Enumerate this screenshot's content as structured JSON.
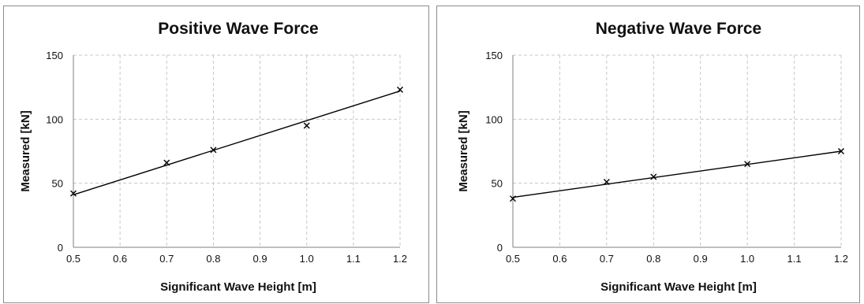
{
  "chart_data": [
    {
      "type": "scatter",
      "title": "Positive Wave Force",
      "xlabel": "Significant Wave Height [m]",
      "ylabel": "Measured [kN]",
      "xlim": [
        0.5,
        1.2
      ],
      "ylim": [
        0,
        150
      ],
      "xticks": [
        "0.5",
        "0.6",
        "0.7",
        "0.8",
        "0.9",
        "1.0",
        "1.1",
        "1.2"
      ],
      "yticks": [
        "0",
        "50",
        "100",
        "150"
      ],
      "grid": true,
      "marker": "x",
      "x": [
        0.5,
        0.7,
        0.8,
        1.0,
        1.2
      ],
      "y": [
        42,
        66,
        76,
        95,
        123
      ],
      "trendline": {
        "x": [
          0.5,
          1.2
        ],
        "y": [
          41,
          122
        ]
      }
    },
    {
      "type": "scatter",
      "title": "Negative Wave Force",
      "xlabel": "Significant Wave Height [m]",
      "ylabel": "Measured [kN]",
      "xlim": [
        0.5,
        1.2
      ],
      "ylim": [
        0,
        150
      ],
      "xticks": [
        "0.5",
        "0.6",
        "0.7",
        "0.8",
        "0.9",
        "1.0",
        "1.1",
        "1.2"
      ],
      "yticks": [
        "0",
        "50",
        "100",
        "150"
      ],
      "grid": true,
      "marker": "x",
      "x": [
        0.5,
        0.7,
        0.8,
        1.0,
        1.2
      ],
      "y": [
        38,
        51,
        55,
        65,
        75
      ],
      "trendline": {
        "x": [
          0.5,
          1.2
        ],
        "y": [
          39,
          75
        ]
      }
    }
  ]
}
